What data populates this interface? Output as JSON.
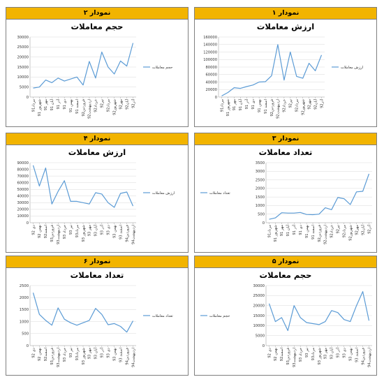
{
  "colors": {
    "header_bg": "#f2b400",
    "line": "#5b9bd5",
    "grid": "#d9d9d9",
    "axis": "#a6a6a6"
  },
  "panels": [
    {
      "id": "p2",
      "header": "نمودار ۲",
      "title": "حجم معاملات",
      "legend": "حجم معاملات"
    },
    {
      "id": "p1",
      "header": "نمودار ۱",
      "title": "ارزش معاملات",
      "legend": "ارزش معاملات"
    },
    {
      "id": "p4",
      "header": "نمودار ۴",
      "title": "ارزش معاملات",
      "legend": "ارزش معاملات"
    },
    {
      "id": "p3",
      "header": "نمودار ۳",
      "title": "تعداد معاملات",
      "legend": "تعداد معاملات"
    },
    {
      "id": "p6",
      "header": "نمودار ۶",
      "title": "تعداد معاملات",
      "legend": "تعداد معاملات"
    },
    {
      "id": "p5",
      "header": "نمودار ۵",
      "title": "حجم معاملات",
      "legend": "حجم معاملات"
    }
  ],
  "chart_data": [
    {
      "type": "line",
      "title": "حجم معاملات",
      "categories": [
        "مرداد91",
        "شهریور 91",
        "مهر 91",
        "آبان 91",
        "آذر 91",
        "دی 91",
        "بهمن 91",
        "اسفند 91",
        "فروردین92",
        "اردیبهشت92",
        "خرداد92",
        "تیر92",
        "مرداد92",
        "شهریور92",
        "مهر92",
        "آبان92",
        "آذر92"
      ],
      "series": [
        {
          "name": "حجم معاملات",
          "values": [
            4500,
            5000,
            8500,
            7200,
            9500,
            8000,
            9000,
            10000,
            6000,
            17800,
            9500,
            22500,
            15000,
            11500,
            18000,
            15500,
            27000
          ]
        }
      ],
      "ylim": [
        0,
        30000
      ],
      "yticks": [
        0,
        5000,
        10000,
        15000,
        20000,
        25000,
        30000
      ],
      "legend": "right"
    },
    {
      "type": "line",
      "title": "ارزش معاملات",
      "categories": [
        "مرداد91",
        "شهریور 91",
        "مهر 91",
        "آبان 91",
        "آذر 91",
        "دی 91",
        "بهمن 91",
        "اسفند 91",
        "فروردین92",
        "اردیبهشت92",
        "خرداد92",
        "تیر92",
        "مرداد92",
        "شهریور92",
        "مهر92",
        "آبان92",
        "آذر92"
      ],
      "series": [
        {
          "name": "ارزش معاملات",
          "values": [
            3000,
            12000,
            25000,
            23000,
            28000,
            32000,
            40000,
            41000,
            57000,
            140000,
            45000,
            120000,
            55000,
            50000,
            90000,
            70000,
            112000
          ]
        }
      ],
      "ylim": [
        0,
        160000
      ],
      "yticks": [
        0,
        20000,
        40000,
        60000,
        80000,
        100000,
        120000,
        140000,
        160000
      ],
      "legend": "right"
    },
    {
      "type": "line",
      "title": "ارزش معاملات",
      "categories": [
        "دی 92",
        "بهمن 92",
        "اسفند92",
        "فروردین93",
        "اردیبهشت93",
        "خرداد 93",
        "تیر 93",
        "مرداد93",
        "شهریور 93",
        "مهر 93",
        "آبان 93",
        "آذر 93",
        "دی 93",
        "بهمن 93",
        "اسفند 93",
        "فروردین94",
        "اردیبهشت94"
      ],
      "series": [
        {
          "name": "ارزش معاملات",
          "values": [
            86000,
            55000,
            82000,
            28000,
            47000,
            63000,
            32000,
            32000,
            30000,
            28000,
            45000,
            43000,
            30000,
            23000,
            44000,
            46000,
            25000
          ]
        }
      ],
      "ylim": [
        0,
        90000
      ],
      "yticks": [
        0,
        10000,
        20000,
        30000,
        40000,
        50000,
        60000,
        70000,
        80000,
        90000
      ],
      "legend": "right"
    },
    {
      "type": "line",
      "title": "تعداد معاملات",
      "categories": [
        "مرداد91",
        "شهریور 91",
        "مهر 91",
        "آبان 91",
        "آذر 91",
        "دی 91",
        "بهمن 91",
        "اسفند 91",
        "فروردین92",
        "اردیبهشت92",
        "خرداد92",
        "تیر92",
        "مرداد92",
        "شهریور92",
        "مهر92",
        "آبان92",
        "آذر92"
      ],
      "series": [
        {
          "name": "تعداد معاملات",
          "values": [
            200,
            280,
            580,
            560,
            560,
            600,
            480,
            470,
            500,
            870,
            760,
            1470,
            1400,
            1060,
            1800,
            1830,
            2850
          ]
        }
      ],
      "ylim": [
        0,
        3500
      ],
      "yticks": [
        0,
        500,
        1000,
        1500,
        2000,
        2500,
        3000,
        3500
      ],
      "legend": "left"
    },
    {
      "type": "line",
      "title": "تعداد معاملات",
      "categories": [
        "دی 92",
        "بهمن 92",
        "اسفند92",
        "فروردین93",
        "اردیبهشت93",
        "خرداد 93",
        "تیر 93",
        "مرداد93",
        "شهریور 93",
        "مهر 93",
        "آبان 93",
        "آذر 93",
        "دی 93",
        "بهمن 93",
        "اسفند 93",
        "فروردین94",
        "اردیبهشت94"
      ],
      "series": [
        {
          "name": "تعداد معاملات",
          "values": [
            2200,
            1300,
            1050,
            850,
            1570,
            1100,
            950,
            850,
            950,
            1050,
            1550,
            1300,
            870,
            920,
            800,
            560,
            1030
          ]
        }
      ],
      "ylim": [
        0,
        2500
      ],
      "yticks": [
        0,
        500,
        1000,
        1500,
        2000,
        2500
      ],
      "legend": "right"
    },
    {
      "type": "line",
      "title": "حجم معاملات",
      "categories": [
        "دی 92",
        "بهمن 92",
        "اسفند92",
        "فروردین93",
        "اردیبهشت93",
        "خرداد 93",
        "تیر 93",
        "مرداد93",
        "شهریور 93",
        "مهر 93",
        "آبان 93",
        "آذر 93",
        "دی 93",
        "بهمن 93",
        "اسفند 93",
        "فروردین94",
        "اردیبهشت94"
      ],
      "series": [
        {
          "name": "حجم معاملات",
          "values": [
            21000,
            12000,
            14000,
            7500,
            20000,
            14000,
            11500,
            11000,
            10500,
            12000,
            17500,
            16500,
            13000,
            12000,
            20000,
            27000,
            12500
          ]
        }
      ],
      "ylim": [
        0,
        30000
      ],
      "yticks": [
        0,
        5000,
        10000,
        15000,
        20000,
        25000,
        30000
      ],
      "legend": "left"
    }
  ]
}
